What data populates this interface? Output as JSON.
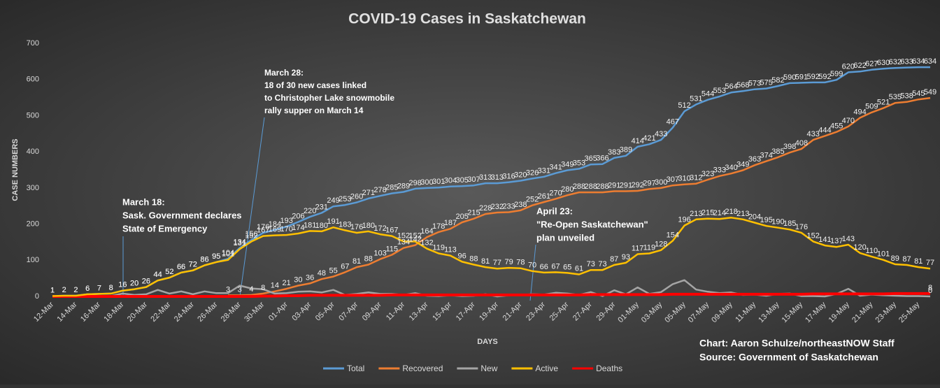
{
  "chart_data": {
    "type": "line",
    "title": "COVID-19 Cases in Saskatchewan",
    "x_label": "DAYS",
    "y_label": "CASE NUMBERS",
    "categories": [
      "12-Mar",
      null,
      "14-Mar",
      null,
      "16-Mar",
      null,
      "18-Mar",
      null,
      "20-Mar",
      null,
      "22-Mar",
      null,
      "24-Mar",
      null,
      "26-Mar",
      null,
      "28-Mar",
      null,
      "30-Mar",
      null,
      "01-Apr",
      null,
      "03-Apr",
      null,
      "05-Apr",
      null,
      "07-Apr",
      null,
      "09-Apr",
      null,
      "11-Apr",
      null,
      "13-Apr",
      null,
      "15-Apr",
      null,
      "17-Apr",
      null,
      "19-Apr",
      null,
      "21-Apr",
      null,
      "23-Apr",
      null,
      "25-Apr",
      null,
      "27-Apr",
      null,
      "29-Apr",
      null,
      "01-May",
      null,
      "03-May",
      null,
      "05-May",
      null,
      "07-May",
      null,
      "09-May",
      null,
      "11-May",
      null,
      "13-May",
      null,
      "15-May",
      null,
      "17-May",
      null,
      "19-May",
      null,
      "21-May",
      null,
      "23-May",
      null,
      "25-May",
      null
    ],
    "ylim": [
      0,
      700
    ],
    "yticks": [
      0,
      100,
      200,
      300,
      400,
      500,
      600,
      700
    ],
    "grid": false,
    "legend": "bottom",
    "series": [
      {
        "name": "Total",
        "color": "#5b9bd5",
        "labels": true,
        "values": [
          1,
          2,
          2,
          6,
          7,
          8,
          16,
          20,
          26,
          44,
          52,
          66,
          72,
          86,
          95,
          104,
          134,
          156,
          176,
          184,
          193,
          206,
          220,
          231,
          249,
          253,
          260,
          271,
          278,
          285,
          289,
          298,
          300,
          301,
          304,
          305,
          307,
          313,
          313,
          316,
          320,
          326,
          331,
          341,
          349,
          353,
          365,
          366,
          383,
          389,
          414,
          421,
          433,
          467,
          512,
          531,
          544,
          553,
          564,
          568,
          573,
          575,
          582,
          590,
          591,
          592,
          592,
          599,
          620,
          622,
          627,
          630,
          632,
          633,
          634,
          634
        ]
      },
      {
        "name": "Recovered",
        "color": "#ed7d31",
        "labels": true,
        "values": [
          null,
          null,
          null,
          null,
          null,
          null,
          null,
          null,
          null,
          null,
          null,
          null,
          null,
          null,
          null,
          3,
          3,
          4,
          8,
          14,
          21,
          30,
          36,
          48,
          55,
          67,
          81,
          88,
          103,
          115,
          134,
          142,
          164,
          178,
          187,
          205,
          215,
          228,
          232,
          233,
          238,
          252,
          261,
          270,
          280,
          288,
          288,
          288,
          291,
          291,
          292,
          297,
          300,
          307,
          310,
          312,
          323,
          333,
          340,
          349,
          363,
          374,
          385,
          398,
          408,
          433,
          444,
          455,
          470,
          494,
          509,
          521,
          535,
          538,
          545,
          549
        ]
      },
      {
        "name": "New",
        "color": "#a5a5a5",
        "labels": false,
        "values": [
          1,
          1,
          0,
          4,
          1,
          1,
          8,
          4,
          6,
          18,
          8,
          14,
          6,
          14,
          9,
          9,
          30,
          22,
          20,
          8,
          9,
          13,
          14,
          11,
          18,
          4,
          7,
          11,
          7,
          7,
          4,
          9,
          2,
          1,
          3,
          1,
          2,
          6,
          0,
          3,
          4,
          6,
          5,
          10,
          8,
          4,
          12,
          1,
          17,
          6,
          25,
          7,
          12,
          34,
          45,
          19,
          13,
          9,
          11,
          4,
          5,
          2,
          7,
          8,
          1,
          1,
          0,
          7,
          21,
          2,
          5,
          3,
          2,
          1,
          1,
          0
        ]
      },
      {
        "name": "Active",
        "color": "#ffc000",
        "labels": true,
        "values": [
          1,
          2,
          2,
          6,
          7,
          8,
          16,
          20,
          26,
          44,
          52,
          66,
          72,
          86,
          95,
          101,
          131,
          152,
          167,
          169,
          170,
          174,
          181,
          180,
          191,
          183,
          176,
          180,
          172,
          167,
          152,
          152,
          132,
          119,
          113,
          96,
          88,
          81,
          77,
          79,
          78,
          70,
          66,
          67,
          65,
          61,
          73,
          73,
          87,
          93,
          117,
          119,
          128,
          154,
          196,
          213,
          215,
          214,
          218,
          213,
          204,
          195,
          190,
          185,
          176,
          152,
          141,
          137,
          143,
          120,
          110,
          101,
          89,
          87,
          81,
          77
        ]
      },
      {
        "name": "Deaths",
        "color": "#ff0000",
        "labels": false,
        "values": [
          0,
          0,
          0,
          0,
          0,
          0,
          0,
          0,
          0,
          0,
          0,
          0,
          0,
          0,
          0,
          0,
          0,
          0,
          1,
          1,
          2,
          2,
          3,
          3,
          3,
          3,
          3,
          3,
          3,
          4,
          4,
          4,
          4,
          4,
          4,
          4,
          4,
          4,
          4,
          4,
          4,
          4,
          4,
          4,
          4,
          4,
          5,
          5,
          5,
          5,
          5,
          5,
          5,
          6,
          6,
          6,
          6,
          6,
          6,
          6,
          6,
          6,
          6,
          6,
          6,
          7,
          7,
          7,
          7,
          7,
          7,
          7,
          8,
          8,
          8,
          8
        ]
      }
    ],
    "annotations": [
      {
        "lines": [
          "March 18:",
          "Sask. Government declares",
          "State of Emergency"
        ]
      },
      {
        "lines": [
          "March 28:",
          "18 of 30 new cases linked",
          "to Christopher Lake snowmobile",
          "rally supper on March 14"
        ]
      },
      {
        "lines": [
          "April 23:",
          "\"Re-Open Saskatchewan\"",
          "plan unveiled"
        ]
      }
    ],
    "credits": [
      "Chart: Aaron Schulze/northeastNOW Staff",
      "Source: Government of Saskatchewan"
    ]
  }
}
